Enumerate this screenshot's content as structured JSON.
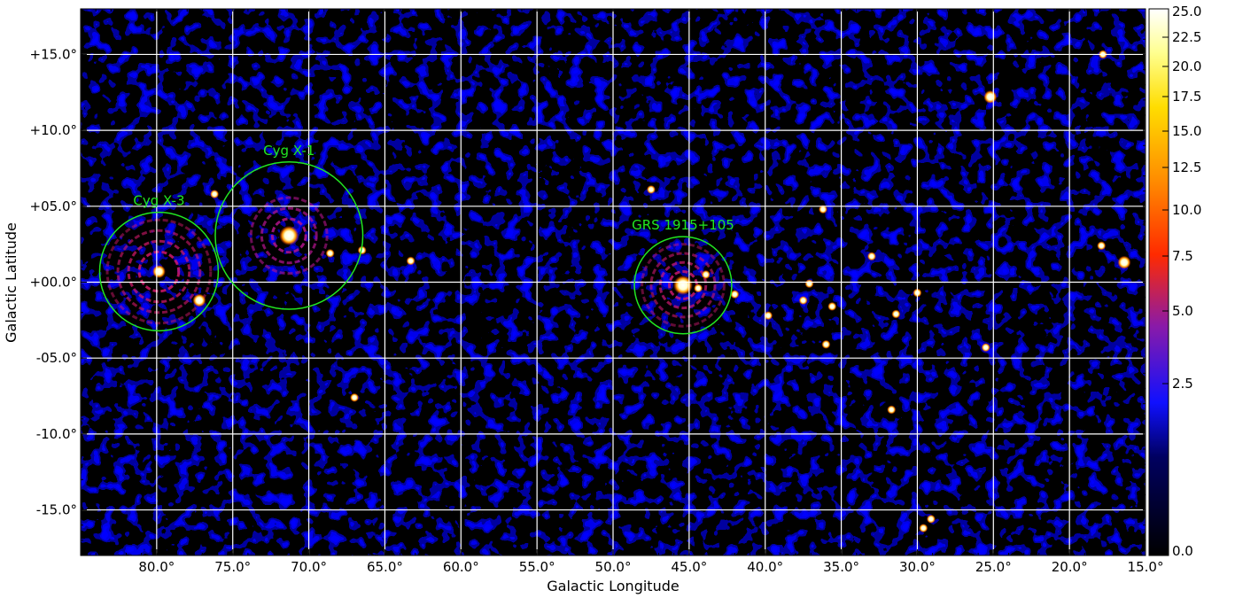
{
  "image": {
    "description_kind": "sky map",
    "colormap": [
      "#000000",
      "#1a1aff",
      "#c0188a",
      "#ff2a00",
      "#ff9a00",
      "#ffff60",
      "#ffffff"
    ]
  },
  "axes": {
    "xlabel": "Galactic Longitude",
    "ylabel": "Galactic Latitude",
    "x_range": [
      85.0,
      15.0
    ],
    "y_range": [
      -18.0,
      18.0
    ],
    "x_ticks": [
      {
        "value": 80,
        "label": "80.0°"
      },
      {
        "value": 75,
        "label": "75.0°"
      },
      {
        "value": 70,
        "label": "70.0°"
      },
      {
        "value": 65,
        "label": "65.0°"
      },
      {
        "value": 60,
        "label": "60.0°"
      },
      {
        "value": 55,
        "label": "55.0°"
      },
      {
        "value": 50,
        "label": "50.0°"
      },
      {
        "value": 45,
        "label": "45.0°"
      },
      {
        "value": 40,
        "label": "40.0°"
      },
      {
        "value": 35,
        "label": "35.0°"
      },
      {
        "value": 30,
        "label": "30.0°"
      },
      {
        "value": 25,
        "label": "25.0°"
      },
      {
        "value": 20,
        "label": "20.0°"
      },
      {
        "value": 15,
        "label": "15.0°"
      }
    ],
    "y_ticks": [
      {
        "value": 15,
        "label": "+15.0°"
      },
      {
        "value": 10,
        "label": "+10.0°"
      },
      {
        "value": 5,
        "label": "+05.0°"
      },
      {
        "value": 0,
        "label": "+00.0°"
      },
      {
        "value": -5,
        "label": "-05.0°"
      },
      {
        "value": -10,
        "label": "-10.0°"
      },
      {
        "value": -15,
        "label": "-15.0°"
      }
    ],
    "grid": true
  },
  "colorbar": {
    "range": [
      0.0,
      25.0
    ],
    "ticks": [
      "25.0",
      "22.5",
      "20.0",
      "17.5",
      "15.0",
      "12.5",
      "10.0",
      "7.5",
      "5.0",
      "2.5",
      "0.0"
    ]
  },
  "regions": [
    {
      "name": "Cyg X-3",
      "l": 79.85,
      "b": 0.7,
      "radius_deg": 3.9
    },
    {
      "name": "Cyg X-1",
      "l": 71.3,
      "b": 3.07,
      "radius_deg": 4.85
    },
    {
      "name": "GRS 1915+105",
      "l": 45.4,
      "b": -0.2,
      "radius_deg": 3.2
    }
  ],
  "sources": [
    {
      "l": 71.3,
      "b": 3.07,
      "strength": 3
    },
    {
      "l": 79.85,
      "b": 0.7,
      "strength": 2
    },
    {
      "l": 45.4,
      "b": -0.2,
      "strength": 3
    },
    {
      "l": 77.2,
      "b": -1.2,
      "strength": 2
    },
    {
      "l": 76.2,
      "b": 5.8,
      "strength": 1
    },
    {
      "l": 68.6,
      "b": 1.9,
      "strength": 1
    },
    {
      "l": 66.5,
      "b": 2.1,
      "strength": 1
    },
    {
      "l": 63.3,
      "b": 1.4,
      "strength": 1
    },
    {
      "l": 67.0,
      "b": -7.6,
      "strength": 1
    },
    {
      "l": 47.5,
      "b": 6.1,
      "strength": 1
    },
    {
      "l": 44.4,
      "b": -0.4,
      "strength": 1
    },
    {
      "l": 43.9,
      "b": 0.5,
      "strength": 1
    },
    {
      "l": 42.0,
      "b": -0.8,
      "strength": 1
    },
    {
      "l": 39.8,
      "b": -2.2,
      "strength": 1
    },
    {
      "l": 37.5,
      "b": -1.2,
      "strength": 1
    },
    {
      "l": 36.2,
      "b": 4.8,
      "strength": 1
    },
    {
      "l": 36.0,
      "b": -4.1,
      "strength": 1
    },
    {
      "l": 37.1,
      "b": -0.1,
      "strength": 1
    },
    {
      "l": 35.6,
      "b": -1.6,
      "strength": 1
    },
    {
      "l": 33.0,
      "b": 1.7,
      "strength": 1
    },
    {
      "l": 31.4,
      "b": -2.1,
      "strength": 1
    },
    {
      "l": 31.7,
      "b": -8.4,
      "strength": 1
    },
    {
      "l": 30.0,
      "b": -0.7,
      "strength": 1
    },
    {
      "l": 25.2,
      "b": 12.2,
      "strength": 2
    },
    {
      "l": 25.5,
      "b": -4.3,
      "strength": 1
    },
    {
      "l": 17.9,
      "b": 2.4,
      "strength": 1
    },
    {
      "l": 16.4,
      "b": 1.3,
      "strength": 2
    },
    {
      "l": 29.1,
      "b": -15.6,
      "strength": 1
    },
    {
      "l": 29.6,
      "b": -16.2,
      "strength": 1
    },
    {
      "l": 17.8,
      "b": 15.0,
      "strength": 1
    }
  ]
}
